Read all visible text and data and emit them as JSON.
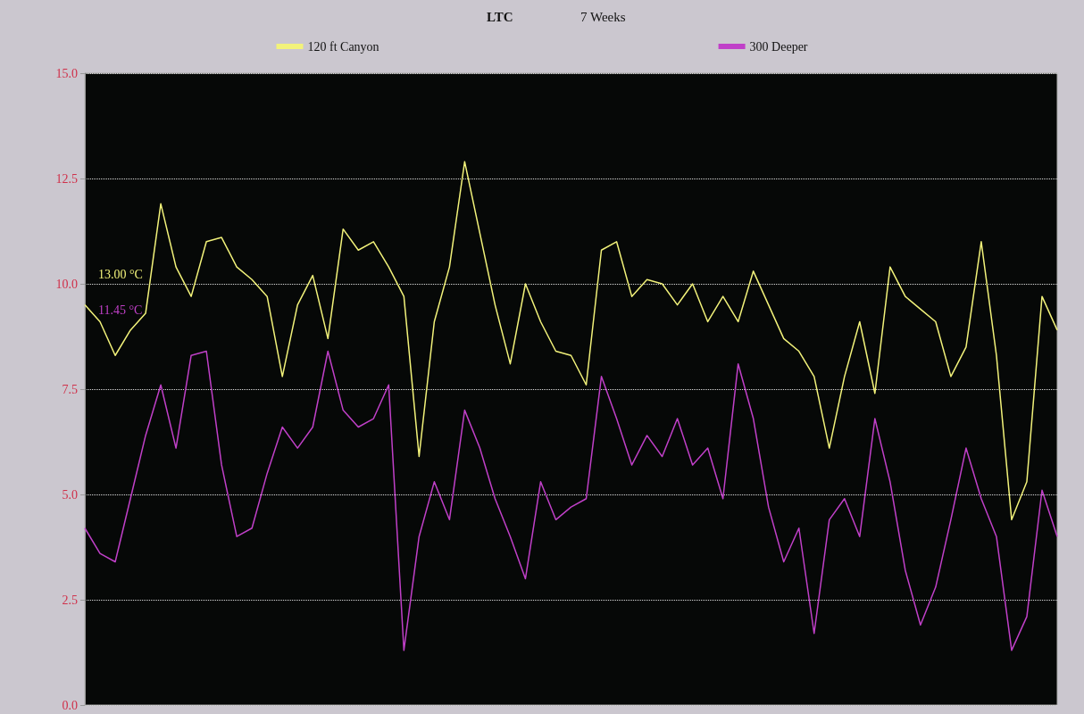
{
  "chart_data": {
    "type": "line",
    "title": "LTC",
    "subtitle": "7 Weeks",
    "categories": [
      null,
      null,
      null,
      null,
      null,
      null,
      null,
      null,
      null,
      null,
      null,
      null,
      null,
      null,
      null,
      null,
      null,
      null,
      null,
      null,
      null,
      null,
      null,
      null,
      null,
      null,
      null,
      null,
      null,
      null,
      null,
      null,
      null,
      null,
      null,
      null,
      null,
      null,
      null,
      null,
      null,
      null,
      null,
      null,
      null,
      null,
      null,
      null,
      null,
      null,
      null,
      null,
      null,
      null,
      null,
      null,
      null,
      null,
      null,
      null,
      null,
      null,
      null,
      null,
      null
    ],
    "series": [
      {
        "name": "120 ft Canyon",
        "color": "#f2f27a",
        "values": [
          9.5,
          9.1,
          8.3,
          8.9,
          9.3,
          11.9,
          10.4,
          9.7,
          11.0,
          11.1,
          10.4,
          10.1,
          9.7,
          7.8,
          9.5,
          10.2,
          8.7,
          11.3,
          10.8,
          11.0,
          10.4,
          9.7,
          5.9,
          9.1,
          10.4,
          12.9,
          11.2,
          9.5,
          8.1,
          10.0,
          9.1,
          8.4,
          8.3,
          7.6,
          10.8,
          11.0,
          9.7,
          10.1,
          10.0,
          9.5,
          10.0,
          9.1,
          9.7,
          9.1,
          10.3,
          9.5,
          8.7,
          8.4,
          7.8,
          6.1,
          7.8,
          9.1,
          7.4,
          10.4,
          9.7,
          9.4,
          9.1,
          7.8,
          8.5,
          11.0,
          8.3,
          4.4,
          5.3,
          9.7,
          8.9
        ]
      },
      {
        "name": "300 Deeper",
        "color": "#c040c8",
        "values": [
          4.2,
          3.6,
          3.4,
          4.9,
          6.4,
          7.6,
          6.1,
          8.3,
          8.4,
          5.7,
          4.0,
          4.2,
          5.5,
          6.6,
          6.1,
          6.6,
          8.4,
          7.0,
          6.6,
          6.8,
          7.6,
          1.3,
          4.0,
          5.3,
          4.4,
          7.0,
          6.1,
          4.9,
          4.0,
          3.0,
          5.3,
          4.4,
          4.7,
          4.9,
          7.8,
          6.8,
          5.7,
          6.4,
          5.9,
          6.8,
          5.7,
          6.1,
          4.9,
          8.1,
          6.8,
          4.7,
          3.4,
          4.2,
          1.7,
          4.4,
          4.9,
          4.0,
          6.8,
          5.3,
          3.2,
          1.9,
          2.8,
          4.4,
          6.1,
          4.9,
          4.0,
          1.3,
          2.1,
          5.1,
          4.0
        ]
      }
    ],
    "ylim": [
      0,
      15
    ],
    "yticks": [
      {
        "value": 0,
        "label": "0.0"
      },
      {
        "value": 2.5,
        "label": "2.5"
      },
      {
        "value": 5,
        "label": "5.0"
      },
      {
        "value": 7.5,
        "label": "7.5"
      },
      {
        "value": 10,
        "label": "10.0"
      },
      {
        "value": 12.5,
        "label": "12.5"
      },
      {
        "value": 15,
        "label": "15.0"
      }
    ],
    "annotations": [
      "13.00 °C",
      "11.45 °C"
    ],
    "grid": "y",
    "legend": "top",
    "marker": "none",
    "line_style": "solid",
    "tick_labels": "y"
  }
}
